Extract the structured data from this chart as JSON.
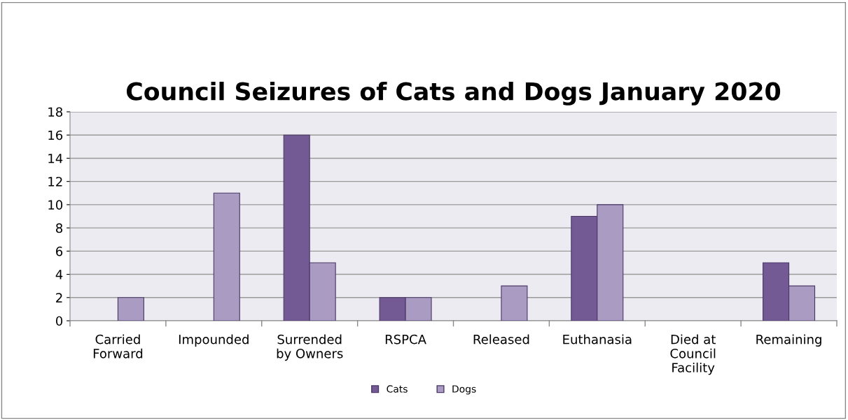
{
  "chart_data": {
    "type": "bar",
    "title": "Council Seizures of Cats and Dogs January 2020",
    "categories": [
      "Carried Forward",
      "Impounded",
      "Surrended by Owners",
      "RSPCA",
      "Released",
      "Euthanasia",
      "Died at Council Facility",
      "Remaining"
    ],
    "series": [
      {
        "name": "Cats",
        "color": "#735a94",
        "values": [
          0,
          0,
          16,
          2,
          0,
          9,
          0,
          5
        ]
      },
      {
        "name": "Dogs",
        "color": "#a99bc2",
        "values": [
          2,
          11,
          5,
          2,
          3,
          10,
          0,
          3
        ]
      }
    ],
    "ylim": [
      0,
      18
    ],
    "yticks": [
      0,
      2,
      4,
      6,
      8,
      10,
      12,
      14,
      16,
      18
    ],
    "grid": "y",
    "legend": "bottom"
  }
}
